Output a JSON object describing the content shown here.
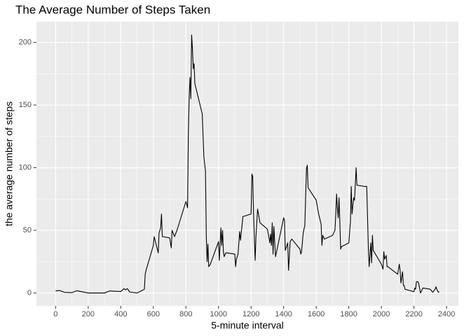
{
  "chart_data": {
    "type": "line",
    "title": "The Average Number of Steps Taken",
    "x_label": "5-minute interval",
    "y_label": "the average number of steps",
    "x": [
      0,
      25,
      55,
      100,
      130,
      200,
      230,
      300,
      330,
      400,
      420,
      430,
      440,
      455,
      500,
      530,
      545,
      550,
      555,
      600,
      605,
      630,
      635,
      645,
      650,
      655,
      700,
      710,
      715,
      730,
      745,
      800,
      810,
      815,
      820,
      825,
      830,
      835,
      840,
      845,
      850,
      855,
      900,
      910,
      920,
      925,
      930,
      935,
      940,
      950,
      1000,
      1005,
      1015,
      1020,
      1025,
      1030,
      1035,
      1045,
      1055,
      1100,
      1105,
      1110,
      1120,
      1130,
      1135,
      1150,
      1200,
      1205,
      1210,
      1215,
      1225,
      1230,
      1240,
      1255,
      1300,
      1310,
      1315,
      1320,
      1325,
      1330,
      1335,
      1340,
      1350,
      1355,
      1400,
      1405,
      1410,
      1425,
      1430,
      1440,
      1450,
      1500,
      1505,
      1510,
      1520,
      1530,
      1540,
      1545,
      1550,
      1600,
      1615,
      1630,
      1635,
      1640,
      1650,
      1700,
      1715,
      1720,
      1725,
      1730,
      1735,
      1740,
      1745,
      1750,
      1755,
      1800,
      1810,
      1815,
      1820,
      1825,
      1830,
      1835,
      1845,
      1850,
      1900,
      1910,
      1920,
      1925,
      1935,
      1940,
      1945,
      1950,
      2000,
      2010,
      2015,
      2020,
      2030,
      2035,
      2040,
      2100,
      2110,
      2115,
      2120,
      2130,
      2135,
      2140,
      2145,
      2200,
      2205,
      2210,
      2215,
      2225,
      2230,
      2240,
      2255,
      2300,
      2315,
      2330,
      2335,
      2340,
      2350,
      2355
    ],
    "series": [
      {
        "name": "steps",
        "color": "#000000",
        "values": [
          1.7,
          2,
          0.5,
          0.3,
          1.8,
          0,
          0,
          0,
          1.6,
          1.2,
          3.5,
          2.5,
          3.5,
          0.8,
          0,
          2,
          3,
          15,
          18,
          38,
          45,
          32,
          48,
          52,
          63,
          45,
          44,
          36,
          50,
          45,
          50,
          73,
          68,
          128,
          157,
          172,
          155,
          206,
          195,
          179,
          183,
          167,
          143,
          109,
          97,
          46,
          25,
          39,
          21,
          23,
          41,
          26,
          52,
          38,
          50,
          33,
          29,
          32,
          32,
          31,
          21,
          27,
          31,
          49,
          42,
          61,
          63,
          95,
          93,
          64,
          26,
          45,
          67,
          56,
          51,
          44,
          40,
          47,
          38,
          56,
          31,
          53,
          29,
          32,
          60,
          58,
          34,
          40,
          18,
          41,
          43,
          35,
          31,
          33,
          48,
          54,
          99,
          102,
          84,
          74,
          63,
          55,
          38,
          46,
          43,
          46,
          50,
          63,
          79,
          68,
          60,
          76,
          56,
          35,
          37,
          40,
          57,
          85,
          63,
          70,
          76,
          74,
          100,
          86,
          85,
          85,
          36,
          21,
          40,
          24,
          46,
          34,
          23,
          19,
          33,
          27,
          30,
          21,
          21,
          15,
          23,
          18,
          8,
          17,
          6,
          6,
          3,
          1,
          4,
          3,
          9,
          9,
          7,
          0,
          4,
          3,
          0.6,
          3,
          5,
          3,
          0.5,
          1.1
        ]
      }
    ],
    "xlim": [
      -117.75,
      2472.75
    ],
    "ylim": [
      -10.3,
      216.5
    ],
    "xticks": [
      0,
      200,
      400,
      600,
      800,
      1000,
      1200,
      1400,
      1600,
      1800,
      2000,
      2200,
      2400
    ],
    "yticks": [
      0,
      50,
      100,
      150,
      200
    ],
    "grid": true
  }
}
